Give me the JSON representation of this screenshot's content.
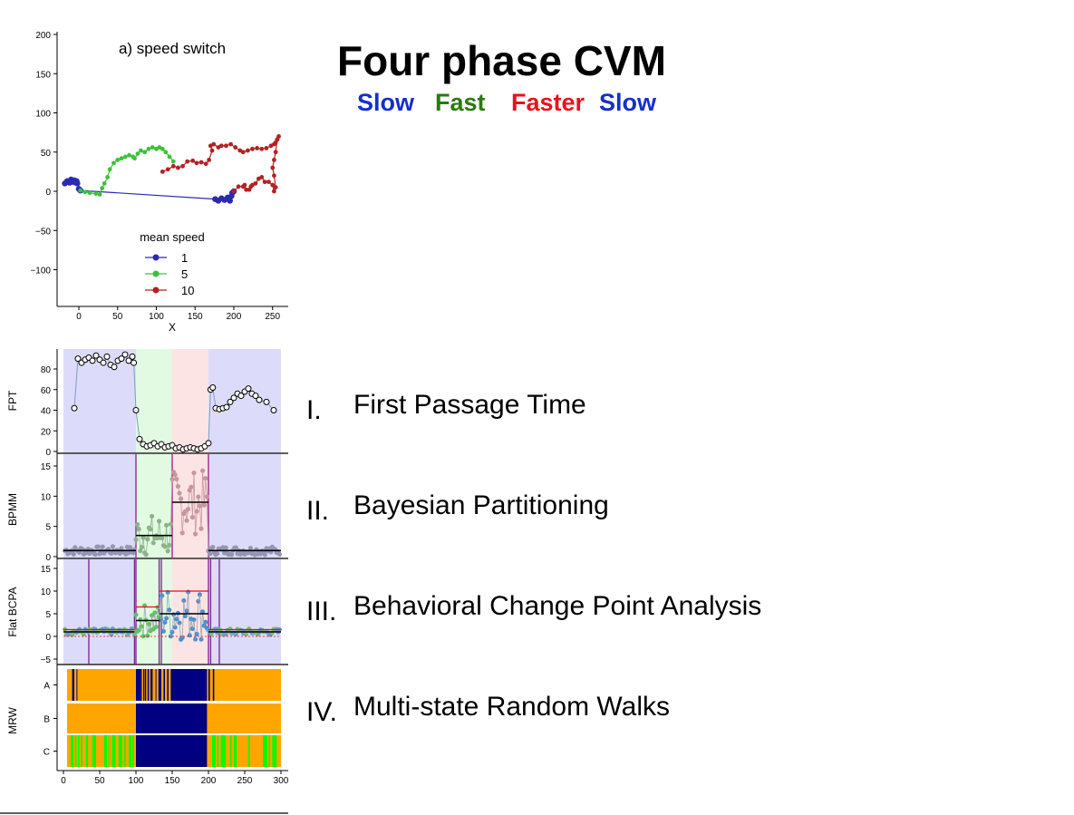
{
  "slide": {
    "title": "Four phase CVM",
    "phases": [
      {
        "label": "Slow",
        "color": "#1530c8"
      },
      {
        "label": "Fast",
        "color": "#2a7a10"
      },
      {
        "label": "Faster",
        "color": "#e8121c"
      },
      {
        "label": "Slow",
        "color": "#1530c8"
      }
    ],
    "methods": [
      {
        "num": "I.",
        "label": "First Passage Time"
      },
      {
        "num": "II.",
        "label": "Bayesian Partitioning"
      },
      {
        "num": "III.",
        "label": "Behavioral Change Point Analysis"
      },
      {
        "num": "IV.",
        "label": "Multi-state Random Walks"
      }
    ]
  },
  "chart_data": [
    {
      "type": "scatter",
      "title": "a) speed switch",
      "xlabel": "X",
      "ylabel": "",
      "xlim": [
        -25,
        270
      ],
      "ylim": [
        -145,
        205
      ],
      "xticks": [
        "0",
        "50",
        "100",
        "150",
        "200",
        "250"
      ],
      "yticks": [
        "200",
        "150",
        "100",
        "50",
        "0",
        "−50",
        "−100"
      ],
      "legend_title": "mean speed",
      "legend_placement": "bottom-center",
      "series": [
        {
          "name": "1",
          "color": "#2b2bb0",
          "points": [
            [
              -18,
              10
            ],
            [
              -15,
              13
            ],
            [
              -12,
              11
            ],
            [
              -10,
              15
            ],
            [
              -8,
              12
            ],
            [
              -6,
              14
            ],
            [
              -4,
              11
            ],
            [
              -3,
              13
            ],
            [
              -2,
              10
            ],
            [
              0,
              3
            ],
            [
              2,
              1
            ],
            [
              176,
              -10
            ],
            [
              180,
              -12
            ],
            [
              184,
              -9
            ],
            [
              188,
              -11
            ],
            [
              192,
              -8
            ],
            [
              195,
              -12
            ],
            [
              197,
              -6
            ],
            [
              198,
              -2
            ],
            [
              200,
              0
            ]
          ]
        },
        {
          "name": "5",
          "color": "#3cc23c",
          "points": [
            [
              2,
              1
            ],
            [
              8,
              -1
            ],
            [
              14,
              -2
            ],
            [
              22,
              -3
            ],
            [
              27,
              -4
            ],
            [
              30,
              4
            ],
            [
              33,
              10
            ],
            [
              37,
              18
            ],
            [
              40,
              28
            ],
            [
              45,
              36
            ],
            [
              50,
              40
            ],
            [
              55,
              42
            ],
            [
              60,
              44
            ],
            [
              65,
              46
            ],
            [
              70,
              44
            ],
            [
              72,
              42
            ],
            [
              76,
              48
            ],
            [
              80,
              52
            ],
            [
              85,
              50
            ],
            [
              90,
              54
            ],
            [
              95,
              56
            ],
            [
              100,
              54
            ],
            [
              104,
              56
            ],
            [
              108,
              54
            ],
            [
              112,
              50
            ],
            [
              117,
              44
            ],
            [
              122,
              38
            ]
          ]
        },
        {
          "name": "10",
          "color": "#b22222",
          "points": [
            [
              108,
              25
            ],
            [
              115,
              28
            ],
            [
              122,
              32
            ],
            [
              128,
              30
            ],
            [
              134,
              32
            ],
            [
              140,
              38
            ],
            [
              147,
              39
            ],
            [
              152,
              36
            ],
            [
              158,
              37
            ],
            [
              164,
              35
            ],
            [
              168,
              40
            ],
            [
              172,
              52
            ],
            [
              170,
              58
            ],
            [
              174,
              60
            ],
            [
              180,
              56
            ],
            [
              184,
              58
            ],
            [
              190,
              58
            ],
            [
              196,
              60
            ],
            [
              202,
              56
            ],
            [
              208,
              52
            ],
            [
              212,
              50
            ],
            [
              218,
              52
            ],
            [
              224,
              54
            ],
            [
              230,
              55
            ],
            [
              236,
              54
            ],
            [
              242,
              55
            ],
            [
              248,
              58
            ],
            [
              252,
              60
            ],
            [
              254,
              62
            ],
            [
              256,
              66
            ],
            [
              258,
              70
            ],
            [
              256,
              66
            ],
            [
              254,
              50
            ],
            [
              252,
              40
            ],
            [
              250,
              30
            ],
            [
              252,
              20
            ],
            [
              254,
              5
            ],
            [
              252,
              0
            ],
            [
              250,
              8
            ],
            [
              245,
              12
            ],
            [
              240,
              12
            ],
            [
              236,
              18
            ],
            [
              232,
              16
            ],
            [
              228,
              10
            ],
            [
              224,
              8
            ],
            [
              222,
              6
            ],
            [
              220,
              2
            ],
            [
              216,
              2
            ],
            [
              214,
              8
            ],
            [
              212,
              6
            ],
            [
              206,
              6
            ],
            [
              200,
              0
            ]
          ]
        }
      ]
    },
    {
      "type": "line",
      "ylabel": "FPT",
      "xlim": [
        -5,
        300
      ],
      "ylim": [
        0,
        100
      ],
      "yticks": [
        "80",
        "60",
        "40",
        "20",
        "0"
      ],
      "phase_boundaries": [
        100,
        150,
        200
      ],
      "series": [
        {
          "name": "FPT",
          "values_desc": "",
          "x": [
            15,
            20,
            25,
            30,
            35,
            40,
            45,
            50,
            55,
            60,
            65,
            70,
            75,
            80,
            85,
            90,
            95,
            97,
            100,
            105,
            110,
            115,
            120,
            125,
            130,
            135,
            140,
            145,
            150,
            155,
            160,
            165,
            170,
            175,
            180,
            185,
            190,
            195,
            200,
            203,
            206,
            210,
            215,
            220,
            225,
            230,
            235,
            240,
            245,
            250,
            255,
            260,
            265,
            270,
            280,
            290
          ],
          "y": [
            42,
            90,
            86,
            89,
            91,
            88,
            93,
            89,
            86,
            92,
            84,
            82,
            88,
            90,
            94,
            88,
            92,
            86,
            40,
            12,
            7,
            5,
            6,
            8,
            5,
            7,
            4,
            5,
            6,
            3,
            4,
            2,
            3,
            4,
            3,
            2,
            3,
            5,
            8,
            60,
            62,
            42,
            41,
            42,
            43,
            48,
            52,
            56,
            54,
            58,
            61,
            56,
            54,
            50,
            48,
            40
          ]
        }
      ]
    },
    {
      "type": "scatter",
      "ylabel": "BPMM",
      "xlim": [
        -5,
        300
      ],
      "ylim": [
        0,
        17
      ],
      "yticks": [
        "15",
        "10",
        "5",
        "0"
      ],
      "segment_means": [
        {
          "x0": 0,
          "x1": 100,
          "y": 1
        },
        {
          "x0": 100,
          "x1": 150,
          "y": 3.5
        },
        {
          "x0": 150,
          "x1": 200,
          "y": 9
        },
        {
          "x0": 200,
          "x1": 300,
          "y": 1
        }
      ]
    },
    {
      "type": "scatter",
      "ylabel": "Flat BCPA",
      "xlim": [
        -5,
        300
      ],
      "ylim": [
        -6,
        16
      ],
      "yticks": [
        "15",
        "10",
        "5",
        "0",
        "−5"
      ],
      "change_points": [
        35,
        98,
        100,
        132,
        135,
        200,
        203,
        215
      ],
      "mean_levels": [
        {
          "x0": 0,
          "x1": 98,
          "y": 1
        },
        {
          "x0": 100,
          "x1": 133,
          "y": 3.5
        },
        {
          "x0": 133,
          "x1": 200,
          "y": 5
        },
        {
          "x0": 200,
          "x1": 300,
          "y": 1
        }
      ],
      "sd_levels": [
        {
          "x0": 0,
          "x1": 98,
          "y": 1.5
        },
        {
          "x0": 100,
          "x1": 133,
          "y": 6.5
        },
        {
          "x0": 133,
          "x1": 200,
          "y": 10
        },
        {
          "x0": 200,
          "x1": 300,
          "y": 1.5
        }
      ]
    },
    {
      "type": "heatmap",
      "ylabel": "MRW",
      "xlim": [
        0,
        300
      ],
      "rows": [
        "A",
        "B",
        "C"
      ],
      "xticks": [
        "0",
        "50",
        "100",
        "150",
        "200",
        "250",
        "300"
      ],
      "state_colors": {
        "slow": "#ffa500",
        "fast": "#000080",
        "alt": "#00ff00"
      }
    }
  ]
}
